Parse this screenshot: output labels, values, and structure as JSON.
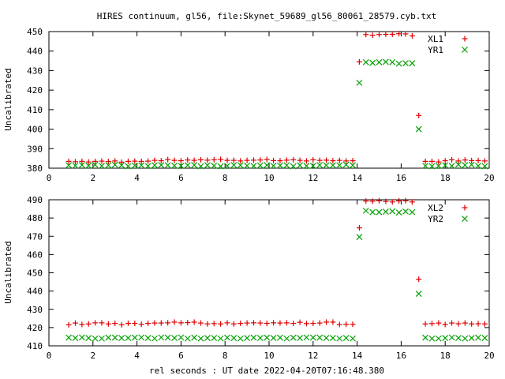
{
  "title": "HIRES continuum, gl56, file:Skynet_59689_gl56_80061_28579.cyb.txt",
  "xlabel": "rel seconds : UT date 2022-04-20T07:16:48.380",
  "colors": {
    "red": "#e00000",
    "green": "#00a000"
  },
  "chart_data": [
    {
      "type": "scatter",
      "ylabel": "Uncalibrated",
      "xlim": [
        0,
        20
      ],
      "ylim": [
        380,
        450
      ],
      "xticks": [
        0,
        2,
        4,
        6,
        8,
        10,
        12,
        14,
        16,
        18,
        20
      ],
      "yticks": [
        380,
        390,
        400,
        410,
        420,
        430,
        440,
        450
      ],
      "legend_position": "top-right",
      "series": [
        {
          "name": "XL1",
          "marker": "plus",
          "color": "#e00000",
          "x": [
            0.9,
            1.2,
            1.5,
            1.8,
            2.1,
            2.4,
            2.7,
            3.0,
            3.3,
            3.6,
            3.9,
            4.2,
            4.5,
            4.8,
            5.1,
            5.4,
            5.7,
            6.0,
            6.3,
            6.6,
            6.9,
            7.2,
            7.5,
            7.8,
            8.1,
            8.4,
            8.7,
            9.0,
            9.3,
            9.6,
            9.9,
            10.2,
            10.5,
            10.8,
            11.1,
            11.4,
            11.7,
            12.0,
            12.3,
            12.6,
            12.9,
            13.2,
            13.5,
            13.8,
            14.1,
            14.4,
            14.7,
            15.0,
            15.3,
            15.6,
            15.9,
            16.2,
            16.5,
            16.8,
            17.1,
            17.4,
            17.7,
            18.0,
            18.3,
            18.6,
            18.9,
            19.2,
            19.5,
            19.8
          ],
          "y": [
            383.5,
            383.3,
            383.5,
            383.2,
            383.5,
            383.6,
            383.4,
            383.7,
            383.1,
            383.5,
            383.6,
            383.5,
            383.6,
            384.0,
            383.8,
            384.4,
            384.0,
            383.8,
            384.2,
            384.0,
            384.3,
            384.1,
            384.3,
            384.5,
            384.0,
            384.0,
            383.7,
            384.0,
            384.1,
            384.2,
            384.5,
            383.9,
            383.8,
            384.1,
            384.3,
            384.0,
            383.7,
            384.3,
            384.0,
            384.1,
            383.8,
            384.0,
            383.7,
            383.8,
            434.5,
            448.5,
            448.1,
            448.5,
            448.6,
            448.6,
            448.9,
            448.8,
            447.8,
            407.0,
            383.5,
            383.5,
            383.2,
            383.8,
            384.3,
            383.7,
            384.2,
            383.9,
            383.9,
            383.7
          ]
        },
        {
          "name": "YR1",
          "marker": "cross",
          "color": "#00a000",
          "x": [
            0.9,
            1.2,
            1.5,
            1.8,
            2.1,
            2.4,
            2.7,
            3.0,
            3.3,
            3.6,
            3.9,
            4.2,
            4.5,
            4.8,
            5.1,
            5.4,
            5.7,
            6.0,
            6.3,
            6.6,
            6.9,
            7.2,
            7.5,
            7.8,
            8.1,
            8.4,
            8.7,
            9.0,
            9.3,
            9.6,
            9.9,
            10.2,
            10.5,
            10.8,
            11.1,
            11.4,
            11.7,
            12.0,
            12.3,
            12.6,
            12.9,
            13.2,
            13.5,
            13.8,
            14.1,
            14.4,
            14.7,
            15.0,
            15.3,
            15.6,
            15.9,
            16.2,
            16.5,
            16.8,
            17.1,
            17.4,
            17.7,
            18.0,
            18.3,
            18.6,
            18.9,
            19.2,
            19.5,
            19.8
          ],
          "y": [
            381.5,
            381.3,
            381.6,
            381.3,
            381.8,
            381.2,
            381.5,
            381.8,
            381.5,
            381.0,
            381.4,
            381.5,
            381.1,
            381.5,
            381.6,
            381.5,
            381.3,
            381.2,
            381.5,
            381.6,
            381.0,
            381.5,
            381.3,
            381.0,
            381.2,
            381.6,
            381.5,
            381.3,
            381.2,
            381.4,
            381.6,
            381.2,
            381.4,
            381.5,
            381.0,
            381.5,
            381.2,
            381.2,
            381.6,
            381.5,
            381.5,
            381.5,
            381.8,
            381.5,
            423.8,
            434.3,
            434.0,
            434.3,
            434.5,
            434.3,
            433.6,
            433.8,
            433.8,
            400.0,
            381.2,
            381.0,
            381.2,
            381.5,
            381.2,
            381.9,
            381.6,
            381.8,
            381.2,
            381.0
          ]
        }
      ]
    },
    {
      "type": "scatter",
      "ylabel": "Uncalibrated",
      "xlim": [
        0,
        20
      ],
      "ylim": [
        410,
        490
      ],
      "xticks": [
        0,
        2,
        4,
        6,
        8,
        10,
        12,
        14,
        16,
        18,
        20
      ],
      "yticks": [
        410,
        420,
        430,
        440,
        450,
        460,
        470,
        480,
        490
      ],
      "legend_position": "top-right",
      "series": [
        {
          "name": "XL2",
          "marker": "plus",
          "color": "#e00000",
          "x": [
            0.9,
            1.2,
            1.5,
            1.8,
            2.1,
            2.4,
            2.7,
            3.0,
            3.3,
            3.6,
            3.9,
            4.2,
            4.5,
            4.8,
            5.1,
            5.4,
            5.7,
            6.0,
            6.3,
            6.6,
            6.9,
            7.2,
            7.5,
            7.8,
            8.1,
            8.4,
            8.7,
            9.0,
            9.3,
            9.6,
            9.9,
            10.2,
            10.5,
            10.8,
            11.1,
            11.4,
            11.7,
            12.0,
            12.3,
            12.6,
            12.9,
            13.2,
            13.5,
            13.8,
            14.1,
            14.4,
            14.7,
            15.0,
            15.3,
            15.6,
            15.9,
            16.2,
            16.5,
            16.8,
            17.1,
            17.4,
            17.7,
            18.0,
            18.3,
            18.6,
            18.9,
            19.2,
            19.5,
            19.8
          ],
          "y": [
            421.5,
            422.5,
            421.7,
            422.0,
            422.6,
            422.6,
            422.0,
            422.3,
            421.5,
            422.3,
            422.3,
            421.8,
            422.3,
            422.5,
            422.5,
            422.6,
            423.0,
            422.6,
            422.7,
            423.0,
            422.5,
            422.0,
            422.2,
            422.0,
            422.6,
            422.0,
            422.3,
            422.5,
            422.6,
            422.5,
            422.3,
            422.6,
            422.5,
            422.6,
            422.3,
            422.9,
            422.2,
            422.3,
            422.5,
            423.0,
            423.0,
            421.7,
            421.8,
            421.8,
            474.6,
            489.3,
            489.2,
            489.5,
            489.1,
            488.8,
            489.4,
            489.5,
            488.8,
            446.5,
            422.0,
            422.2,
            422.5,
            421.7,
            422.5,
            422.1,
            422.5,
            422.0,
            422.1,
            422.0
          ]
        },
        {
          "name": "YR2",
          "marker": "cross",
          "color": "#00a000",
          "x": [
            0.9,
            1.2,
            1.5,
            1.8,
            2.1,
            2.4,
            2.7,
            3.0,
            3.3,
            3.6,
            3.9,
            4.2,
            4.5,
            4.8,
            5.1,
            5.4,
            5.7,
            6.0,
            6.3,
            6.6,
            6.9,
            7.2,
            7.5,
            7.8,
            8.1,
            8.4,
            8.7,
            9.0,
            9.3,
            9.6,
            9.9,
            10.2,
            10.5,
            10.8,
            11.1,
            11.4,
            11.7,
            12.0,
            12.3,
            12.6,
            12.9,
            13.2,
            13.5,
            13.8,
            14.1,
            14.4,
            14.7,
            15.0,
            15.3,
            15.6,
            15.9,
            16.2,
            16.5,
            16.8,
            17.1,
            17.4,
            17.7,
            18.0,
            18.3,
            18.6,
            18.9,
            19.2,
            19.5,
            19.8
          ],
          "y": [
            414.5,
            414.3,
            414.6,
            414.3,
            414.0,
            414.0,
            414.5,
            414.5,
            414.3,
            414.3,
            414.5,
            414.6,
            414.3,
            414.0,
            414.6,
            414.5,
            414.3,
            414.6,
            414.0,
            414.5,
            414.0,
            414.3,
            414.3,
            414.0,
            414.5,
            414.3,
            414.0,
            414.3,
            414.5,
            414.3,
            414.5,
            414.3,
            414.5,
            414.0,
            414.5,
            414.3,
            414.6,
            414.5,
            414.5,
            414.3,
            414.3,
            414.0,
            414.3,
            414.0,
            469.6,
            484.0,
            483.2,
            483.2,
            483.5,
            483.7,
            483.0,
            483.6,
            483.2,
            438.5,
            414.5,
            414.0,
            414.0,
            414.3,
            414.6,
            414.3,
            414.0,
            414.3,
            414.5,
            414.3
          ]
        }
      ]
    }
  ]
}
